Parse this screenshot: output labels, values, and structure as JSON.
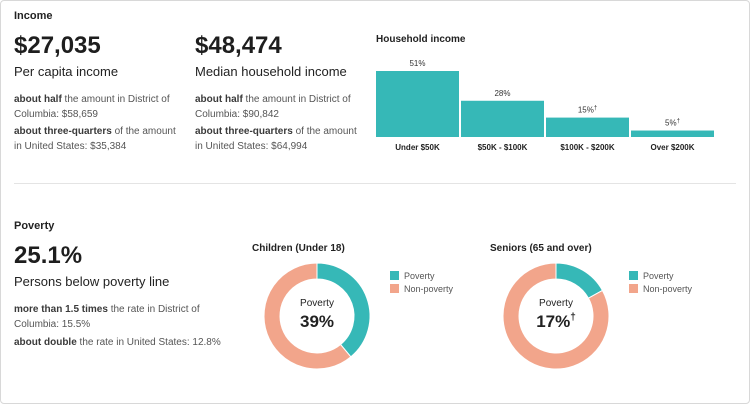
{
  "colors": {
    "teal": "#36b8b7",
    "salmon": "#f2a58b"
  },
  "income": {
    "title": "Income",
    "per_capita": {
      "value": "$27,035",
      "label": "Per capita income",
      "cmp1_bold": "about half",
      "cmp1_rest": " the amount in District of Columbia: $58,659",
      "cmp2_bold": "about three-quarters",
      "cmp2_rest": " of the amount in United States: $35,384"
    },
    "median": {
      "value": "$48,474",
      "label": "Median household income",
      "cmp1_bold": "about half",
      "cmp1_rest": " the amount in District of Columbia: $90,842",
      "cmp2_bold": "about three-quarters",
      "cmp2_rest": " of the amount in United States: $64,994"
    }
  },
  "poverty": {
    "title": "Poverty",
    "value": "25.1%",
    "label": "Persons below poverty line",
    "cmp1_bold": "more than 1.5 times",
    "cmp1_rest": " the rate in District of Columbia: 15.5%",
    "cmp2_bold": "about double",
    "cmp2_rest": " the rate in United States: 12.8%"
  },
  "chart_data": [
    {
      "type": "bar",
      "title": "Household income",
      "categories": [
        "Under $50K",
        "$50K - $100K",
        "$100K - $200K",
        "Over $200K"
      ],
      "values": [
        51,
        28,
        15,
        5
      ],
      "value_labels": [
        "51%",
        "28%",
        "15%",
        "5%"
      ],
      "marginal_of_error_flag": [
        false,
        false,
        true,
        true
      ],
      "flag_symbol": "†",
      "ylim": [
        0,
        51
      ],
      "color": "#36b8b7"
    },
    {
      "type": "pie",
      "title": "Children (Under 18)",
      "labels": [
        "Poverty",
        "Non-poverty"
      ],
      "values": [
        39,
        61
      ],
      "colors": [
        "#36b8b7",
        "#f2a58b"
      ],
      "center_label": "Poverty",
      "center_value": "39%",
      "center_flag": ""
    },
    {
      "type": "pie",
      "title": "Seniors (65 and over)",
      "labels": [
        "Poverty",
        "Non-poverty"
      ],
      "values": [
        17,
        83
      ],
      "colors": [
        "#36b8b7",
        "#f2a58b"
      ],
      "center_label": "Poverty",
      "center_value": "17%",
      "center_flag": "†"
    }
  ]
}
